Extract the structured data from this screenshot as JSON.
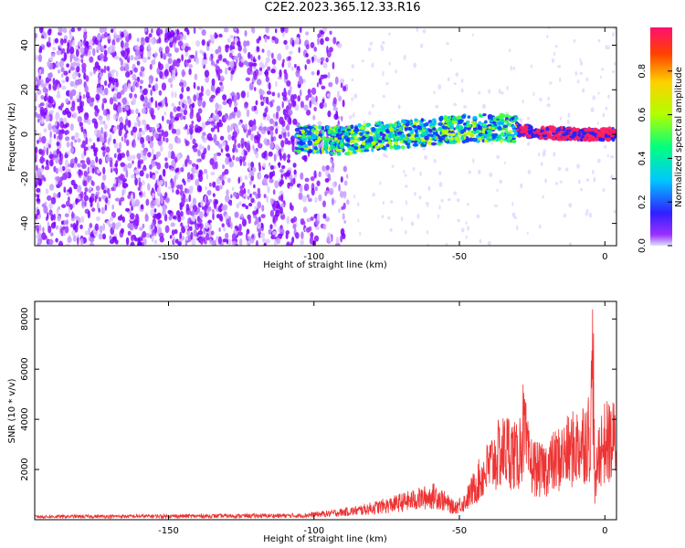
{
  "title": "C2E2.2023.365.12.33.R16",
  "chart_data": [
    {
      "type": "heatmap",
      "xlabel": "Height of straight line (km)",
      "ylabel": "Frequency (Hz)",
      "xlim": [
        -196,
        4
      ],
      "ylim": [
        -50,
        48
      ],
      "xticks": [
        -150,
        -100,
        -50,
        0
      ],
      "yticks": [
        -40,
        -20,
        0,
        20,
        40
      ],
      "colorbar": {
        "label": "Normalized spectral amplitude",
        "range": [
          0.0,
          1.0
        ],
        "ticks": [
          0.0,
          0.2,
          0.4,
          0.6,
          0.8
        ]
      },
      "signal_band": {
        "x_start": -106,
        "center_freq": [
          [
            -106,
            -2
          ],
          [
            -90,
            -3
          ],
          [
            -80,
            -1
          ],
          [
            -60,
            1
          ],
          [
            -45,
            3
          ],
          [
            -35,
            3
          ],
          [
            -25,
            1
          ],
          [
            -10,
            0
          ],
          [
            4,
            0
          ]
        ],
        "note": "noise speckle dominates x < -88; sparse noise -88 to -106 band region; strong coherent line near 0 Hz approaching 0 km"
      }
    },
    {
      "type": "line",
      "xlabel": "Height of straight line (km)",
      "ylabel": "SNR (10 * v/v)",
      "xlim": [
        -196,
        4
      ],
      "ylim": [
        0,
        8700
      ],
      "xticks": [
        -150,
        -100,
        -50,
        0
      ],
      "yticks": [
        2000,
        4000,
        6000,
        8000
      ],
      "series": [
        {
          "color": "#ee3333",
          "envelope": [
            [
              -196,
              150
            ],
            [
              -105,
              200
            ],
            [
              -95,
              300
            ],
            [
              -85,
              450
            ],
            [
              -75,
              700
            ],
            [
              -65,
              1000
            ],
            [
              -58,
              1200
            ],
            [
              -52,
              600
            ],
            [
              -48,
              900
            ],
            [
              -44,
              1800
            ],
            [
              -40,
              2600
            ],
            [
              -36,
              3300
            ],
            [
              -33,
              3500
            ],
            [
              -30,
              3000
            ],
            [
              -28,
              4500
            ],
            [
              -26,
              2800
            ],
            [
              -22,
              2400
            ],
            [
              -18,
              2800
            ],
            [
              -14,
              3200
            ],
            [
              -10,
              3600
            ],
            [
              -7,
              4000
            ],
            [
              -5,
              4200
            ],
            [
              -4,
              8500
            ],
            [
              -3.5,
              1200
            ],
            [
              -2,
              3500
            ],
            [
              0,
              3800
            ],
            [
              4,
              3900
            ]
          ]
        }
      ]
    }
  ]
}
